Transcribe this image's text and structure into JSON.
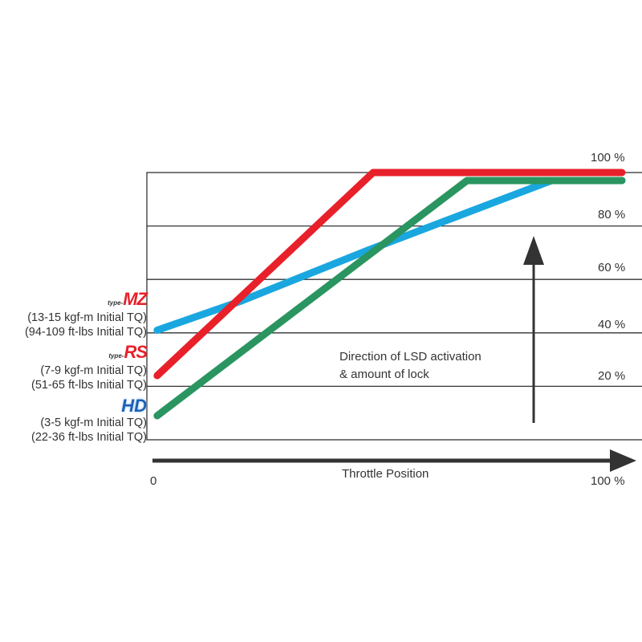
{
  "chart_data": {
    "type": "line",
    "xlabel": "Throttle Position",
    "x_tick_labels": [
      "0",
      "100 %"
    ],
    "y_tick_labels": [
      "20 %",
      "40 %",
      "60 %",
      "80 %",
      "100 %"
    ],
    "xlim": [
      0,
      100
    ],
    "ylim": [
      0,
      100
    ],
    "grid": true,
    "annotation": [
      "Direction of LSD activation",
      "& amount of lock"
    ],
    "series": [
      {
        "key": "mz",
        "color": "#1aa7e0",
        "x": [
          1,
          19,
          46,
          85,
          100
        ],
        "y": [
          41,
          52,
          71,
          97,
          97
        ]
      },
      {
        "key": "rs",
        "color": "#e8202a",
        "x": [
          1,
          47,
          100
        ],
        "y": [
          24,
          100,
          100
        ]
      },
      {
        "key": "hd",
        "color": "#2a9560",
        "x": [
          1,
          67,
          100
        ],
        "y": [
          9,
          97,
          97
        ]
      }
    ]
  },
  "legend": {
    "mz": {
      "logo_prefix": "type-",
      "logo": "MZ",
      "line1": "(13-15 kgf-m Initial TQ)",
      "line2": "(94-109 ft-lbs Initial TQ)"
    },
    "rs": {
      "logo_prefix": "type-",
      "logo": "RS",
      "line1": "(7-9 kgf-m Initial TQ)",
      "line2": "(51-65 ft-lbs Initial TQ)"
    },
    "hd": {
      "logo_prefix": "",
      "logo": "HD",
      "line1": "(3-5 kgf-m Initial TQ)",
      "line2": "(22-36 ft-lbs Initial TQ)"
    }
  }
}
